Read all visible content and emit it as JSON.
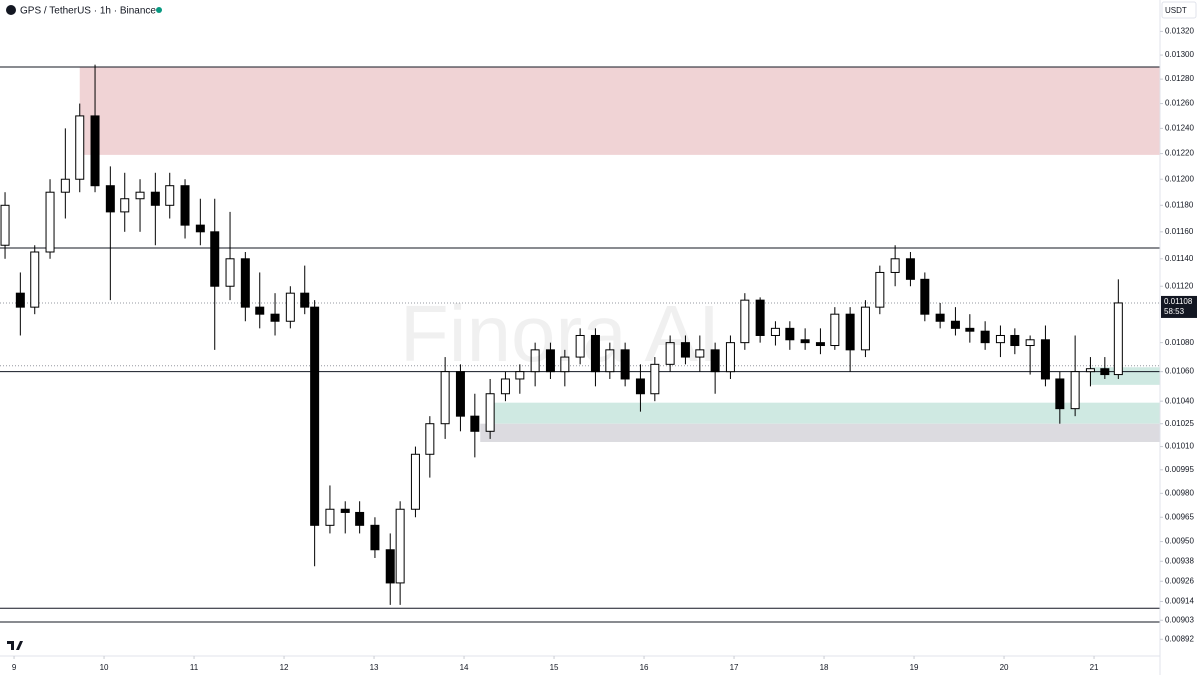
{
  "chart_data": {
    "type": "candlestick",
    "title": "GPS / TetherUS · 1h · Binance",
    "currency": "USDT",
    "watermark": "Finora AI",
    "log_scale": true,
    "up_color": "#ffffff",
    "down_color": "#000000",
    "wick_color": "#000000",
    "xlim": [
      8.844,
      21.733
    ],
    "xticks": [
      9,
      10,
      11,
      12,
      13,
      14,
      15,
      16,
      17,
      18,
      19,
      20,
      21
    ],
    "ylim": [
      0.00883,
      0.01347
    ],
    "yticks": [
      {
        "value": 0.0132,
        "label": "0.01320"
      },
      {
        "value": 0.013,
        "label": "0.01300"
      },
      {
        "value": 0.0128,
        "label": "0.01280"
      },
      {
        "value": 0.0126,
        "label": "0.01260"
      },
      {
        "value": 0.0124,
        "label": "0.01240"
      },
      {
        "value": 0.0122,
        "label": "0.01220"
      },
      {
        "value": 0.012,
        "label": "0.01200"
      },
      {
        "value": 0.0118,
        "label": "0.01180"
      },
      {
        "value": 0.0116,
        "label": "0.01160"
      },
      {
        "value": 0.0114,
        "label": "0.01140"
      },
      {
        "value": 0.0112,
        "label": "0.01120"
      },
      {
        "value": 0.0108,
        "label": "0.01080"
      },
      {
        "value": 0.0106,
        "label": "0.01060"
      },
      {
        "value": 0.0104,
        "label": "0.01040"
      },
      0.01025,
      {
        "value": 0.0101,
        "label": "0.01010"
      },
      0.00995,
      {
        "value": 0.0098,
        "label": "0.00980"
      },
      0.00965,
      {
        "value": 0.0095,
        "label": "0.00950"
      },
      0.00938,
      0.00926,
      0.00914,
      0.00903,
      0.00892
    ],
    "last_price": 0.01108,
    "countdown": "58:53",
    "zones": [
      {
        "top": 0.0129,
        "bottom": 0.01219,
        "x_from": 9.73,
        "color": "#f0d3d5"
      },
      {
        "top": 0.01039,
        "bottom": 0.01025,
        "x_from": 14.29,
        "color": "#cfe9e2"
      },
      {
        "top": 0.01025,
        "bottom": 0.01013,
        "x_from": 14.18,
        "color": "#dcdbe0"
      },
      {
        "top": 0.01063,
        "bottom": 0.01051,
        "x_from": 20.96,
        "color": "#cfe9e2"
      }
    ],
    "levels": [
      {
        "price": 0.0129,
        "style": "solid"
      },
      {
        "price": 0.01148,
        "style": "solid"
      },
      {
        "price": 0.0106,
        "style": "solid"
      },
      {
        "price": 0.0091,
        "style": "solid"
      },
      {
        "price": 0.00902,
        "style": "solid"
      },
      {
        "price": 0.01064,
        "style": "dotted"
      }
    ],
    "x": [
      8.9,
      9.07,
      9.23,
      9.4,
      9.57,
      9.73,
      9.9,
      10.07,
      10.23,
      10.4,
      10.57,
      10.73,
      10.9,
      11.07,
      11.23,
      11.4,
      11.57,
      11.73,
      11.9,
      12.07,
      12.23,
      12.34,
      12.51,
      12.68,
      12.84,
      13.01,
      13.18,
      13.29,
      13.46,
      13.62,
      13.79,
      13.96,
      14.12,
      14.29,
      14.46,
      14.62,
      14.79,
      14.96,
      15.12,
      15.29,
      15.46,
      15.62,
      15.79,
      15.96,
      16.12,
      16.29,
      16.46,
      16.62,
      16.79,
      16.96,
      17.12,
      17.29,
      17.46,
      17.62,
      17.79,
      17.96,
      18.12,
      18.29,
      18.46,
      18.62,
      18.79,
      18.96,
      19.12,
      19.29,
      19.46,
      19.62,
      19.79,
      19.96,
      20.12,
      20.29,
      20.46,
      20.62,
      20.79,
      20.96,
      21.12,
      21.27
    ],
    "open": [
      0.0115,
      0.01115,
      0.01105,
      0.01145,
      0.0119,
      0.012,
      0.0125,
      0.01195,
      0.01175,
      0.01185,
      0.0119,
      0.0118,
      0.01195,
      0.01165,
      0.0116,
      0.0112,
      0.0114,
      0.01105,
      0.011,
      0.01095,
      0.01115,
      0.01105,
      0.0096,
      0.0097,
      0.00968,
      0.0096,
      0.00945,
      0.00925,
      0.0097,
      0.01005,
      0.01025,
      0.0106,
      0.0103,
      0.0102,
      0.01045,
      0.01055,
      0.0106,
      0.01075,
      0.0106,
      0.0107,
      0.01085,
      0.0106,
      0.01075,
      0.01055,
      0.01045,
      0.01065,
      0.0108,
      0.0107,
      0.01075,
      0.0106,
      0.0108,
      0.0111,
      0.01085,
      0.0109,
      0.01082,
      0.0108,
      0.01078,
      0.011,
      0.01075,
      0.01105,
      0.0113,
      0.0114,
      0.01125,
      0.011,
      0.01095,
      0.0109,
      0.01088,
      0.0108,
      0.01085,
      0.01078,
      0.01082,
      0.01055,
      0.01035,
      0.0106,
      0.01062,
      0.01058
    ],
    "high": [
      0.0119,
      0.0113,
      0.0115,
      0.012,
      0.0124,
      0.0126,
      0.01292,
      0.0121,
      0.01205,
      0.012,
      0.01205,
      0.01205,
      0.012,
      0.01185,
      0.01185,
      0.01175,
      0.01145,
      0.0113,
      0.01115,
      0.0112,
      0.01135,
      0.0111,
      0.00985,
      0.00975,
      0.00975,
      0.00965,
      0.00955,
      0.00975,
      0.0101,
      0.0103,
      0.0107,
      0.01065,
      0.01045,
      0.01055,
      0.0106,
      0.01065,
      0.0108,
      0.0108,
      0.01075,
      0.0109,
      0.0109,
      0.0108,
      0.0108,
      0.01065,
      0.0107,
      0.01085,
      0.01085,
      0.01085,
      0.0108,
      0.01085,
      0.01115,
      0.01112,
      0.01095,
      0.01095,
      0.0109,
      0.0109,
      0.01105,
      0.01105,
      0.0111,
      0.01135,
      0.0115,
      0.01145,
      0.0113,
      0.01108,
      0.01105,
      0.011,
      0.01095,
      0.01092,
      0.0109,
      0.01085,
      0.01092,
      0.0106,
      0.01085,
      0.0107,
      0.0107,
      0.01125
    ],
    "low": [
      0.0114,
      0.01085,
      0.011,
      0.0114,
      0.0117,
      0.0119,
      0.0119,
      0.0111,
      0.0116,
      0.0116,
      0.0115,
      0.0117,
      0.01155,
      0.0115,
      0.01075,
      0.0111,
      0.01095,
      0.0109,
      0.01085,
      0.0109,
      0.011,
      0.00935,
      0.00955,
      0.00955,
      0.00955,
      0.0094,
      0.00912,
      0.00912,
      0.00965,
      0.0099,
      0.01015,
      0.0102,
      0.01003,
      0.01015,
      0.0104,
      0.01045,
      0.0105,
      0.01055,
      0.0105,
      0.01065,
      0.0105,
      0.01055,
      0.0105,
      0.01033,
      0.0104,
      0.0106,
      0.01065,
      0.0106,
      0.01045,
      0.01055,
      0.01075,
      0.0108,
      0.01078,
      0.01075,
      0.01075,
      0.01072,
      0.01075,
      0.0106,
      0.0107,
      0.011,
      0.0112,
      0.0112,
      0.01095,
      0.0109,
      0.01085,
      0.0108,
      0.01075,
      0.0107,
      0.01072,
      0.01058,
      0.0105,
      0.01025,
      0.0103,
      0.0105,
      0.01055,
      0.01055
    ],
    "close": [
      0.0118,
      0.01105,
      0.01145,
      0.0119,
      0.012,
      0.0125,
      0.01195,
      0.01175,
      0.01185,
      0.0119,
      0.0118,
      0.01195,
      0.01165,
      0.0116,
      0.0112,
      0.0114,
      0.01105,
      0.011,
      0.01095,
      0.01115,
      0.01105,
      0.0096,
      0.0097,
      0.00968,
      0.0096,
      0.00945,
      0.00925,
      0.0097,
      0.01005,
      0.01025,
      0.0106,
      0.0103,
      0.0102,
      0.01045,
      0.01055,
      0.0106,
      0.01075,
      0.0106,
      0.0107,
      0.01085,
      0.0106,
      0.01075,
      0.01055,
      0.01045,
      0.01065,
      0.0108,
      0.0107,
      0.01075,
      0.0106,
      0.0108,
      0.0111,
      0.01085,
      0.0109,
      0.01082,
      0.0108,
      0.01078,
      0.011,
      0.01075,
      0.01105,
      0.0113,
      0.0114,
      0.01125,
      0.011,
      0.01095,
      0.0109,
      0.01088,
      0.0108,
      0.01085,
      0.01078,
      0.01082,
      0.01055,
      0.01035,
      0.0106,
      0.01062,
      0.01058,
      0.01108
    ]
  }
}
